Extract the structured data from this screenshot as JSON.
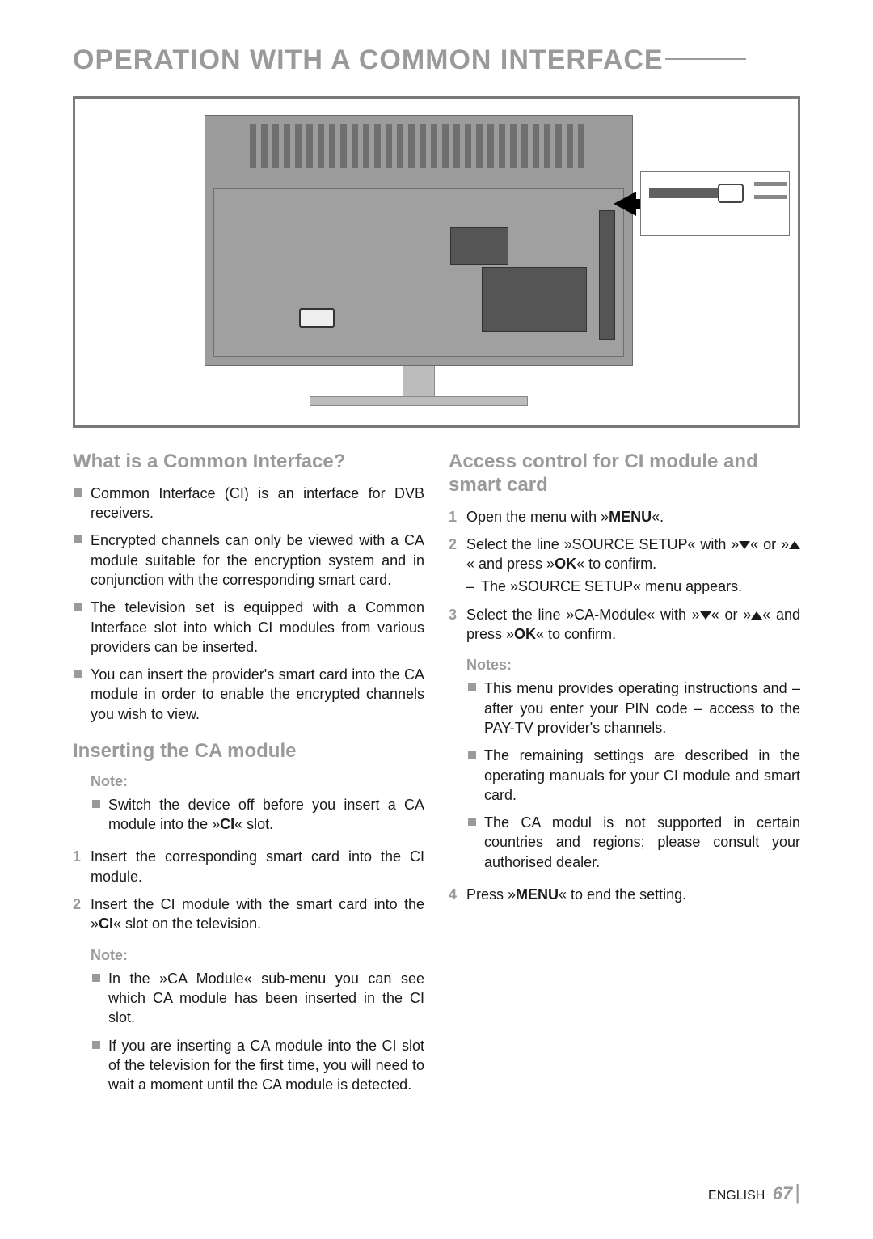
{
  "colors": {
    "heading_gray": "#9a9a9a",
    "body_text": "#1a1a1a",
    "bullet_fill": "#9a9a9a",
    "page_bg": "#ffffff",
    "illustration_border": "#7a7a7a",
    "tv_body": "#9c9c9c",
    "port_dark": "#555555",
    "arrow_black": "#000000"
  },
  "typography": {
    "title_fontsize_pt": 26,
    "section_heading_fontsize_pt": 18,
    "sub_heading_fontsize_pt": 14,
    "body_fontsize_pt": 13.5,
    "footer_fontsize_pt": 12
  },
  "page_title": "OPERATION WITH A COMMON INTERFACE",
  "left_column": {
    "h1": "What is a Common Interface?",
    "bullets_1": [
      "Common Interface (CI) is an interface for DVB receivers.",
      "Encrypted channels can only be viewed with a CA module suitable for the encryption system and in conjunction with the corresponding smart card.",
      "The television set is equipped with a Common Interface slot into which CI modules from various providers can be inserted.",
      "You can insert the provider's smart card into the CA module in order to enable the encrypted channels you wish to view."
    ],
    "h2": "Inserting the CA module",
    "note1_label": "Note:",
    "note1_bullets": [
      "Switch the device off before you insert a CA module into the »CI« slot."
    ],
    "steps": [
      "Insert the corresponding smart card into the CI module.",
      "Insert the CI module with the smart card into the »CI« slot on the television."
    ],
    "note2_label": "Note:",
    "note2_bullets": [
      "In the »CA Module« sub-menu you can see which CA module has been inserted in the CI slot.",
      "If you are inserting a CA module into the CI slot of the television for the first time, you will need to wait a moment until the CA module is detected."
    ]
  },
  "right_column": {
    "h1": "Access control for CI module and smart card",
    "steps_a": [
      "Open the menu with »MENU«.",
      "Select the line »SOURCE SETUP« with »V« or »Λ« and press »OK« to confirm."
    ],
    "step2_sub": "The »SOURCE SETUP« menu appears.",
    "step3": "Select the line »CA-Module« with »V« or »Λ« and press »OK« to confirm.",
    "notes_label": "Notes:",
    "notes_bullets": [
      "This menu provides operating instructions and – after you enter your PIN code – access to the PAY-TV provider's channels.",
      "The remaining settings are described in the operating manuals for your CI module and smart card.",
      "The CA modul is not supported in certain countries and regions; please consult your authorised dealer."
    ],
    "step4": "Press »MENU« to end the setting."
  },
  "footer": {
    "lang": "ENGLISH",
    "page": "67"
  }
}
